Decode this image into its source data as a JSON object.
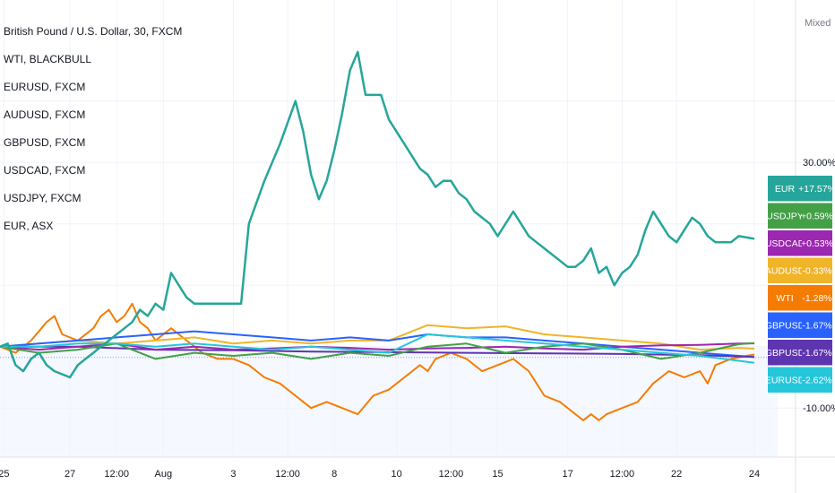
{
  "window": {
    "title": "British Pound / U.S. Dollar, 30, FXCM"
  },
  "legend": {
    "items": [
      "British Pound / U.S. Dollar, 30, FXCM",
      "WTI, BLACKBULL",
      "EURUSD, FXCM",
      "AUDUSD, FXCM",
      "GBPUSD, FXCM",
      "USDCAD, FXCM",
      "USDJPY, FXCM",
      "EUR, ASX"
    ]
  },
  "scale_mode": "Mixed",
  "chart_data": {
    "type": "line",
    "x_tick_labels": [
      "25",
      "27",
      "12:00",
      "Aug",
      "3",
      "12:00",
      "8",
      "10",
      "12:00",
      "15",
      "17",
      "12:00",
      "22",
      "24"
    ],
    "y_tick_labels": [
      "30.00%",
      "-10.00%"
    ],
    "ylim": [
      -18,
      55
    ],
    "x_range": [
      0,
      100
    ],
    "baseline": 0,
    "grid": true,
    "series": [
      {
        "name": "EUR",
        "label": "+17.57%",
        "color": "#26a69a",
        "points": [
          [
            0,
            0
          ],
          [
            1,
            0.5
          ],
          [
            2,
            -3
          ],
          [
            3,
            -4
          ],
          [
            4,
            -2
          ],
          [
            5,
            -1
          ],
          [
            6,
            -3
          ],
          [
            7,
            -4
          ],
          [
            9,
            -5
          ],
          [
            10,
            -3
          ],
          [
            11,
            -2
          ],
          [
            12,
            -1
          ],
          [
            13,
            0
          ],
          [
            14,
            1
          ],
          [
            15,
            2
          ],
          [
            16,
            3
          ],
          [
            17,
            4
          ],
          [
            18,
            6
          ],
          [
            19,
            5
          ],
          [
            20,
            7
          ],
          [
            21,
            6
          ],
          [
            22,
            12
          ],
          [
            23,
            10
          ],
          [
            24,
            8
          ],
          [
            25,
            7
          ],
          [
            26,
            7
          ],
          [
            27,
            7
          ],
          [
            28,
            7
          ],
          [
            29,
            7
          ],
          [
            30,
            7
          ],
          [
            31,
            7
          ],
          [
            32,
            20
          ],
          [
            34,
            27
          ],
          [
            36,
            33
          ],
          [
            38,
            40
          ],
          [
            39,
            35
          ],
          [
            40,
            28
          ],
          [
            41,
            24
          ],
          [
            42,
            27
          ],
          [
            43,
            32
          ],
          [
            44,
            38
          ],
          [
            45,
            45
          ],
          [
            46,
            48
          ],
          [
            47,
            41
          ],
          [
            48,
            41
          ],
          [
            49,
            41
          ],
          [
            50,
            37
          ],
          [
            52,
            33
          ],
          [
            54,
            29
          ],
          [
            55,
            28
          ],
          [
            56,
            26
          ],
          [
            57,
            27
          ],
          [
            58,
            27
          ],
          [
            59,
            25
          ],
          [
            60,
            24
          ],
          [
            61,
            22
          ],
          [
            62,
            21
          ],
          [
            63,
            20
          ],
          [
            64,
            18
          ],
          [
            65,
            20
          ],
          [
            66,
            22
          ],
          [
            67,
            20
          ],
          [
            68,
            18
          ],
          [
            69,
            17
          ],
          [
            70,
            16
          ],
          [
            71,
            15
          ],
          [
            72,
            14
          ],
          [
            73,
            13
          ],
          [
            74,
            13
          ],
          [
            75,
            14
          ],
          [
            76,
            16
          ],
          [
            77,
            12
          ],
          [
            78,
            13
          ],
          [
            79,
            10
          ],
          [
            80,
            12
          ],
          [
            81,
            13
          ],
          [
            82,
            15
          ],
          [
            83,
            19
          ],
          [
            84,
            22
          ],
          [
            85,
            20
          ],
          [
            86,
            18
          ],
          [
            87,
            17
          ],
          [
            88,
            19
          ],
          [
            89,
            21
          ],
          [
            90,
            20
          ],
          [
            91,
            18
          ],
          [
            92,
            17
          ],
          [
            93,
            17
          ],
          [
            94,
            17
          ],
          [
            95,
            18
          ],
          [
            97,
            17.57
          ]
        ]
      },
      {
        "name": "USDJPY",
        "label": "+0.59%",
        "color": "#43a047",
        "points": [
          [
            0,
            0
          ],
          [
            5,
            -1
          ],
          [
            10,
            -0.5
          ],
          [
            15,
            0.5
          ],
          [
            20,
            -2
          ],
          [
            25,
            -1
          ],
          [
            30,
            -1.5
          ],
          [
            35,
            -1
          ],
          [
            40,
            -2
          ],
          [
            45,
            -1
          ],
          [
            50,
            -1.5
          ],
          [
            55,
            0
          ],
          [
            60,
            0.5
          ],
          [
            65,
            -1
          ],
          [
            70,
            0
          ],
          [
            75,
            0.5
          ],
          [
            80,
            -0.5
          ],
          [
            85,
            -2
          ],
          [
            90,
            -1
          ],
          [
            95,
            0.4
          ],
          [
            97,
            0.59
          ]
        ]
      },
      {
        "name": "USDCAD",
        "label": "+0.53%",
        "color": "#9c27b0",
        "points": [
          [
            0,
            0
          ],
          [
            5,
            -0.5
          ],
          [
            10,
            0
          ],
          [
            15,
            0.5
          ],
          [
            20,
            -0.5
          ],
          [
            25,
            0
          ],
          [
            30,
            -0.5
          ],
          [
            35,
            -0.3
          ],
          [
            40,
            0
          ],
          [
            45,
            -0.2
          ],
          [
            50,
            -0.5
          ],
          [
            55,
            -0.3
          ],
          [
            60,
            -0.2
          ],
          [
            65,
            0
          ],
          [
            70,
            -0.3
          ],
          [
            75,
            -0.5
          ],
          [
            80,
            0
          ],
          [
            85,
            0.2
          ],
          [
            90,
            0.3
          ],
          [
            95,
            0.5
          ],
          [
            97,
            0.53
          ]
        ]
      },
      {
        "name": "AUDUSD",
        "label": "-0.33%",
        "color": "#f0b429",
        "points": [
          [
            0,
            0
          ],
          [
            5,
            0.5
          ],
          [
            10,
            1
          ],
          [
            15,
            0.5
          ],
          [
            20,
            1
          ],
          [
            25,
            1.5
          ],
          [
            30,
            0.5
          ],
          [
            35,
            1
          ],
          [
            40,
            0.5
          ],
          [
            45,
            1
          ],
          [
            50,
            1
          ],
          [
            55,
            3.5
          ],
          [
            60,
            3
          ],
          [
            65,
            3.3
          ],
          [
            70,
            2
          ],
          [
            75,
            1.5
          ],
          [
            80,
            1
          ],
          [
            85,
            0.5
          ],
          [
            90,
            -0.5
          ],
          [
            95,
            -0.2
          ],
          [
            97,
            -0.33
          ]
        ]
      },
      {
        "name": "WTI",
        "label": "-1.28%",
        "color": "#f57c00",
        "points": [
          [
            0,
            0
          ],
          [
            2,
            -1
          ],
          [
            4,
            1
          ],
          [
            6,
            4
          ],
          [
            7,
            5
          ],
          [
            8,
            2
          ],
          [
            10,
            1
          ],
          [
            12,
            3
          ],
          [
            13,
            5
          ],
          [
            14,
            6
          ],
          [
            15,
            4
          ],
          [
            16,
            5
          ],
          [
            17,
            7
          ],
          [
            18,
            4
          ],
          [
            19,
            3
          ],
          [
            20,
            1
          ],
          [
            22,
            3
          ],
          [
            24,
            1
          ],
          [
            25,
            0
          ],
          [
            26,
            -1
          ],
          [
            28,
            -2
          ],
          [
            30,
            -2
          ],
          [
            32,
            -3
          ],
          [
            34,
            -5
          ],
          [
            36,
            -6
          ],
          [
            38,
            -8
          ],
          [
            40,
            -10
          ],
          [
            42,
            -9
          ],
          [
            44,
            -10
          ],
          [
            46,
            -11
          ],
          [
            48,
            -8
          ],
          [
            50,
            -7
          ],
          [
            52,
            -5
          ],
          [
            54,
            -3
          ],
          [
            55,
            -4
          ],
          [
            56,
            -2
          ],
          [
            58,
            -1
          ],
          [
            60,
            -2
          ],
          [
            62,
            -4
          ],
          [
            64,
            -3
          ],
          [
            66,
            -2
          ],
          [
            68,
            -4
          ],
          [
            70,
            -8
          ],
          [
            72,
            -9
          ],
          [
            74,
            -11
          ],
          [
            75,
            -12
          ],
          [
            76,
            -11
          ],
          [
            77,
            -12
          ],
          [
            78,
            -11
          ],
          [
            80,
            -10
          ],
          [
            82,
            -9
          ],
          [
            84,
            -6
          ],
          [
            86,
            -4
          ],
          [
            88,
            -5
          ],
          [
            90,
            -4
          ],
          [
            91,
            -6
          ],
          [
            92,
            -3
          ],
          [
            94,
            -2
          ],
          [
            96,
            -1.5
          ],
          [
            97,
            -1.28
          ]
        ]
      },
      {
        "name": "GBPUSD",
        "label": "-1.67%",
        "color": "#2962ff",
        "points": [
          [
            0,
            0
          ],
          [
            5,
            0.5
          ],
          [
            10,
            1
          ],
          [
            15,
            1.5
          ],
          [
            20,
            2
          ],
          [
            25,
            2.5
          ],
          [
            30,
            2
          ],
          [
            35,
            1.5
          ],
          [
            40,
            1
          ],
          [
            45,
            1.5
          ],
          [
            50,
            1
          ],
          [
            55,
            2
          ],
          [
            60,
            1.5
          ],
          [
            65,
            1.5
          ],
          [
            70,
            1
          ],
          [
            75,
            0.5
          ],
          [
            80,
            0
          ],
          [
            85,
            -0.5
          ],
          [
            90,
            -1
          ],
          [
            95,
            -1.5
          ],
          [
            97,
            -1.67
          ]
        ]
      },
      {
        "name": "GBPUSD",
        "label": "-1.67%",
        "color": "#5e35b1",
        "points": [
          [
            0,
            0
          ],
          [
            10,
            0
          ],
          [
            20,
            -0.5
          ],
          [
            30,
            -0.6
          ],
          [
            40,
            -0.8
          ],
          [
            50,
            -0.9
          ],
          [
            60,
            -1
          ],
          [
            70,
            -1.1
          ],
          [
            80,
            -1.2
          ],
          [
            90,
            -1.4
          ],
          [
            97,
            -1.67
          ]
        ]
      },
      {
        "name": "EURUSD",
        "label": "-2.62%",
        "color": "#26c6da",
        "points": [
          [
            0,
            0
          ],
          [
            5,
            0
          ],
          [
            10,
            0.5
          ],
          [
            15,
            0.5
          ],
          [
            20,
            0
          ],
          [
            25,
            0.5
          ],
          [
            30,
            0
          ],
          [
            35,
            -0.5
          ],
          [
            40,
            0
          ],
          [
            45,
            -0.5
          ],
          [
            50,
            -1
          ],
          [
            55,
            2
          ],
          [
            60,
            1.5
          ],
          [
            65,
            1
          ],
          [
            70,
            0.5
          ],
          [
            75,
            0
          ],
          [
            80,
            -0.5
          ],
          [
            85,
            -1
          ],
          [
            90,
            -1.5
          ],
          [
            95,
            -2.3
          ],
          [
            97,
            -2.62
          ]
        ]
      }
    ]
  }
}
